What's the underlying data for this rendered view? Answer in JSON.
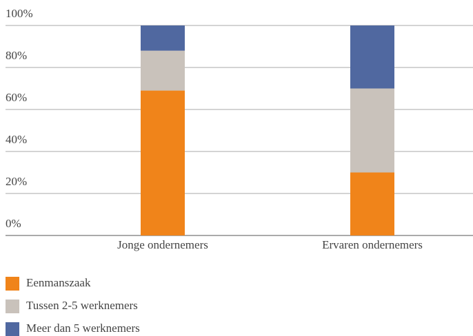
{
  "chart_data": {
    "type": "stacked_bar",
    "categories": [
      "Jonge ondernemers",
      "Ervaren ondernemers"
    ],
    "series": [
      {
        "name": "Eenmanszaak",
        "color": "#f0841a",
        "values": [
          69,
          30
        ]
      },
      {
        "name": "Tussen 2-5 werknemers",
        "color": "#c9c2bb",
        "values": [
          19,
          40
        ]
      },
      {
        "name": "Meer dan 5 werknemers",
        "color": "#5068a0",
        "values": [
          12,
          30
        ]
      }
    ],
    "ylim": [
      0,
      100
    ],
    "yticks": [
      {
        "value": 0,
        "label": "0%"
      },
      {
        "value": 20,
        "label": "20%"
      },
      {
        "value": 40,
        "label": "40%"
      },
      {
        "value": 60,
        "label": "60%"
      },
      {
        "value": 80,
        "label": "80%"
      },
      {
        "value": 100,
        "label": "100%"
      }
    ],
    "grid": true
  }
}
